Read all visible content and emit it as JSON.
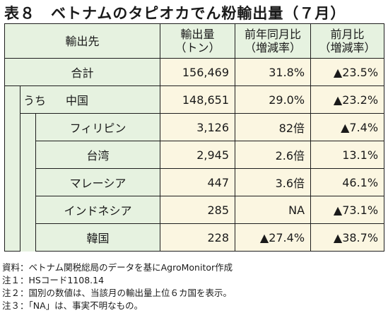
{
  "title": "表８　ベトナムのタピオカでん粉輸出量（７月）",
  "header": {
    "col1": "輸出先",
    "col2_line1": "輸出量",
    "col2_line2": "（トン）",
    "col3_line1": "前年同月比",
    "col3_line2": "（増減率）",
    "col4_line1": "前月比",
    "col4_line2": "（増減率）"
  },
  "total": {
    "label": "合計",
    "volume": "156,469",
    "yoy": "31.8%",
    "mom": "▲23.5%"
  },
  "china": {
    "prefix": "うち",
    "label": "中国",
    "volume": "148,651",
    "yoy": "29.0%",
    "mom": "▲23.2%"
  },
  "rows": [
    {
      "label": "フィリピン",
      "volume": "3,126",
      "yoy": "82倍",
      "mom": "▲7.4%"
    },
    {
      "label": "台湾",
      "volume": "2,945",
      "yoy": "2.6倍",
      "mom": "13.1%"
    },
    {
      "label": "マレーシア",
      "volume": "447",
      "yoy": "3.6倍",
      "mom": "46.1%"
    },
    {
      "label": "インドネシア",
      "volume": "285",
      "yoy": "NA",
      "mom": "▲73.1%"
    },
    {
      "label": "韓国",
      "volume": "228",
      "yoy": "▲27.4%",
      "mom": "▲38.7%"
    }
  ],
  "notes": [
    "資料：ベトナム関税総局のデータを基にAgroMonitor作成",
    "注１：HSコード1108.14",
    "注２：国別の数値は、当該月の輸出量上位６カ国を表示。",
    "注３：「NA」は、事実不明なもの。"
  ],
  "colors": {
    "header_bg": "#e6f2e0",
    "value_bg": "#fbf6e1",
    "border": "#1e1e1e"
  }
}
